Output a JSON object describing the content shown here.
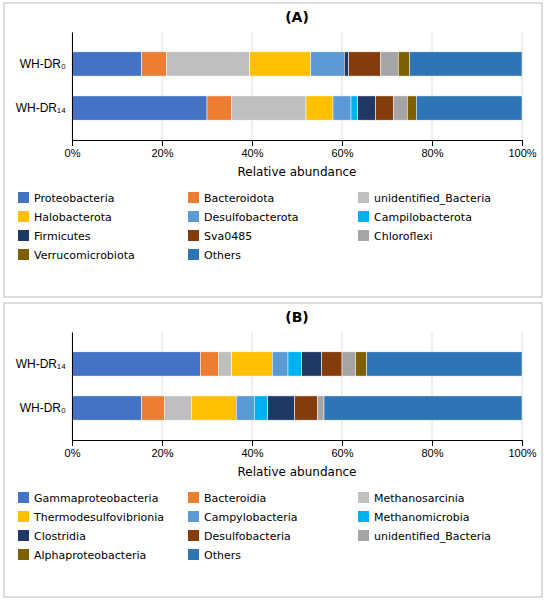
{
  "chart_data": [
    {
      "type": "bar",
      "orientation": "horizontal",
      "stacked": true,
      "title": "(A)",
      "xlabel": "Relative abundance",
      "categories": [
        "WH-DR₁₄",
        "WH-DR₀"
      ],
      "series": [
        {
          "name": "Proteobacteria",
          "color": "#4472C4",
          "values": [
            0.3,
            0.155
          ]
        },
        {
          "name": "Bacteroidota",
          "color": "#ED7D31",
          "values": [
            0.055,
            0.055
          ]
        },
        {
          "name": "unidentified_Bacteria",
          "color": "#BFBFBF",
          "values": [
            0.165,
            0.185
          ]
        },
        {
          "name": "Halobacterota",
          "color": "#FFC000",
          "values": [
            0.06,
            0.135
          ]
        },
        {
          "name": "Desulfobacterota",
          "color": "#5B9BD5",
          "values": [
            0.04,
            0.075
          ]
        },
        {
          "name": "Campilobacterota",
          "color": "#00B0F0",
          "values": [
            0.015,
            0.0
          ]
        },
        {
          "name": "Firmicutes",
          "color": "#1F3864",
          "values": [
            0.04,
            0.01
          ]
        },
        {
          "name": "Sva0485",
          "color": "#843C0C",
          "values": [
            0.04,
            0.07
          ]
        },
        {
          "name": "Chloroflexi",
          "color": "#A5A5A5",
          "values": [
            0.03,
            0.04
          ]
        },
        {
          "name": "Verrucomicrobiota",
          "color": "#7F6000",
          "values": [
            0.02,
            0.025
          ]
        },
        {
          "name": "Others",
          "color": "#2E75B6",
          "values": [
            0.235,
            0.25
          ]
        }
      ],
      "xlim": [
        0.0,
        1.0
      ],
      "xticks": [
        {
          "value": 0.0,
          "label": "0%"
        },
        {
          "value": 0.2,
          "label": "20%"
        },
        {
          "value": 0.4,
          "label": "40%"
        },
        {
          "value": 0.6,
          "label": "60%"
        },
        {
          "value": 0.8,
          "label": "80%"
        },
        {
          "value": 1.0,
          "label": "100%"
        }
      ],
      "grid": true,
      "legend": "bottom"
    },
    {
      "type": "bar",
      "orientation": "horizontal",
      "stacked": true,
      "title": "(B)",
      "xlabel": "Relative abundance",
      "categories": [
        "WH-DR₀",
        "WH-DR₁₄"
      ],
      "series": [
        {
          "name": "Gammaproteobacteria",
          "color": "#4472C4",
          "values": [
            0.155,
            0.285
          ]
        },
        {
          "name": "Bacteroidia",
          "color": "#ED7D31",
          "values": [
            0.05,
            0.04
          ]
        },
        {
          "name": "Methanosarcinia",
          "color": "#BFBFBF",
          "values": [
            0.06,
            0.03
          ]
        },
        {
          "name": "Thermodesulfovibrionia",
          "color": "#FFC000",
          "values": [
            0.1,
            0.09
          ]
        },
        {
          "name": "Campylobacteria",
          "color": "#5B9BD5",
          "values": [
            0.04,
            0.035
          ]
        },
        {
          "name": "Methanomicrobia",
          "color": "#00B0F0",
          "values": [
            0.03,
            0.03
          ]
        },
        {
          "name": "Clostridia",
          "color": "#1F3864",
          "values": [
            0.06,
            0.045
          ]
        },
        {
          "name": "Desulfobacteria",
          "color": "#843C0C",
          "values": [
            0.05,
            0.045
          ]
        },
        {
          "name": "unidentified_Bacteria",
          "color": "#A5A5A5",
          "values": [
            0.015,
            0.03
          ]
        },
        {
          "name": "Alphaproteobacteria",
          "color": "#7F6000",
          "values": [
            0.0,
            0.025
          ]
        },
        {
          "name": "Others",
          "color": "#2E75B6",
          "values": [
            0.44,
            0.345
          ]
        }
      ],
      "xlim": [
        0.0,
        1.0
      ],
      "xticks": [
        {
          "value": 0.0,
          "label": "0%"
        },
        {
          "value": 0.2,
          "label": "20%"
        },
        {
          "value": 0.4,
          "label": "40%"
        },
        {
          "value": 0.6,
          "label": "60%"
        },
        {
          "value": 0.8,
          "label": "80%"
        },
        {
          "value": 1.0,
          "label": "100%"
        }
      ],
      "grid": true,
      "legend": "bottom"
    }
  ]
}
